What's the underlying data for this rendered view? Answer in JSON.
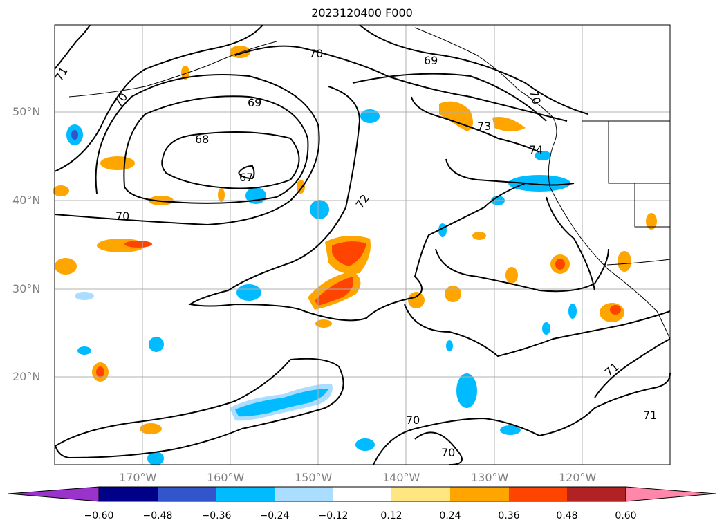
{
  "title": "2023120400 F000",
  "axes": {
    "lat_labels": [
      "50°N",
      "40°N",
      "30°N",
      "20°N"
    ],
    "lon_labels": [
      "170°W",
      "160°W",
      "150°W",
      "140°W",
      "130°W",
      "120°W"
    ]
  },
  "contour_labels": [
    "71",
    "70",
    "69",
    "68",
    "67",
    "70",
    "72",
    "69",
    "73",
    "70",
    "74",
    "70",
    "71",
    "70",
    "70",
    "71"
  ],
  "colorbar": {
    "ticks": [
      "−0.60",
      "−0.48",
      "−0.36",
      "−0.24",
      "−0.12",
      "0.12",
      "0.24",
      "0.36",
      "0.48",
      "0.60"
    ],
    "colors": [
      "#9933cc",
      "#000088",
      "#3355cc",
      "#00bbff",
      "#aaddff",
      "#ffffff",
      "#ffe680",
      "#ffa500",
      "#ff4400",
      "#b22222",
      "#ff88aa"
    ]
  }
}
